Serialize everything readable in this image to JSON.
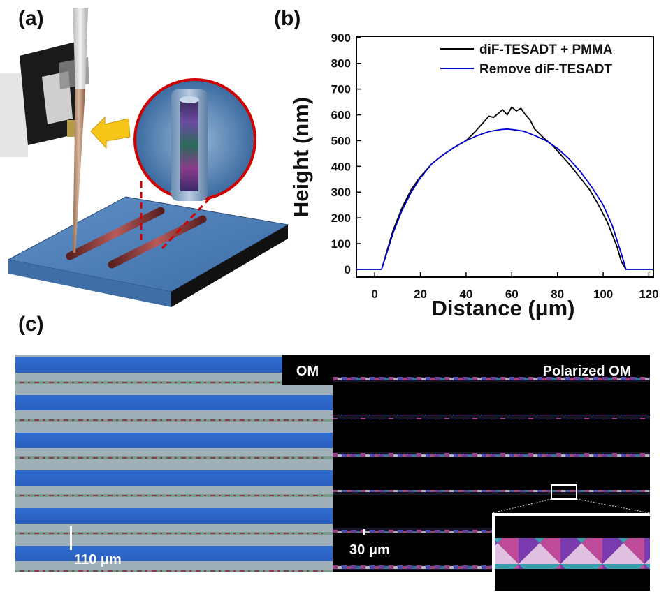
{
  "panels": {
    "a": {
      "label": "(a)"
    },
    "b": {
      "label": "(b)"
    },
    "c": {
      "label": "(c)"
    }
  },
  "chart_data": {
    "type": "line",
    "xlabel": "Distance (μm)",
    "ylabel": "Height (nm)",
    "xlim": [
      -8,
      122
    ],
    "ylim": [
      -30,
      905
    ],
    "xticks": [
      "0",
      "20",
      "40",
      "60",
      "80",
      "100",
      "120"
    ],
    "yticks": [
      "0",
      "100",
      "200",
      "300",
      "400",
      "500",
      "600",
      "700",
      "800",
      "900"
    ],
    "legend_position": "top-right",
    "grid": false,
    "series": [
      {
        "name": "diF-TESADT + PMMA",
        "color": "#000000",
        "x": [
          -8,
          0,
          3,
          5,
          8,
          12,
          16,
          20,
          25,
          30,
          35,
          40,
          44,
          48,
          50,
          52,
          54,
          56,
          58,
          60,
          62,
          64,
          66,
          68,
          70,
          74,
          78,
          82,
          86,
          90,
          94,
          98,
          102,
          106,
          108,
          110,
          112,
          116,
          122
        ],
        "y": [
          0,
          0,
          0,
          60,
          150,
          240,
          310,
          360,
          410,
          445,
          475,
          500,
          535,
          575,
          595,
          590,
          605,
          620,
          600,
          630,
          615,
          625,
          600,
          580,
          545,
          510,
          480,
          440,
          400,
          355,
          310,
          250,
          180,
          90,
          30,
          0,
          0,
          0,
          0
        ]
      },
      {
        "name": "Remove diF-TESADT",
        "color": "#0000cc",
        "x": [
          -8,
          0,
          3,
          5,
          8,
          12,
          16,
          20,
          25,
          30,
          35,
          40,
          45,
          50,
          55,
          58,
          61,
          65,
          70,
          75,
          80,
          85,
          90,
          95,
          100,
          104,
          108,
          110,
          112,
          116,
          122
        ],
        "y": [
          0,
          0,
          0,
          55,
          140,
          230,
          300,
          355,
          410,
          445,
          475,
          500,
          520,
          535,
          543,
          545,
          542,
          537,
          520,
          500,
          470,
          430,
          380,
          320,
          250,
          170,
          60,
          0,
          0,
          0,
          0
        ]
      }
    ]
  },
  "micrographs": {
    "left_label": "OM",
    "right_label": "Polarized OM",
    "left_scalebar": "110 μm",
    "right_scalebar": "30 μm"
  }
}
